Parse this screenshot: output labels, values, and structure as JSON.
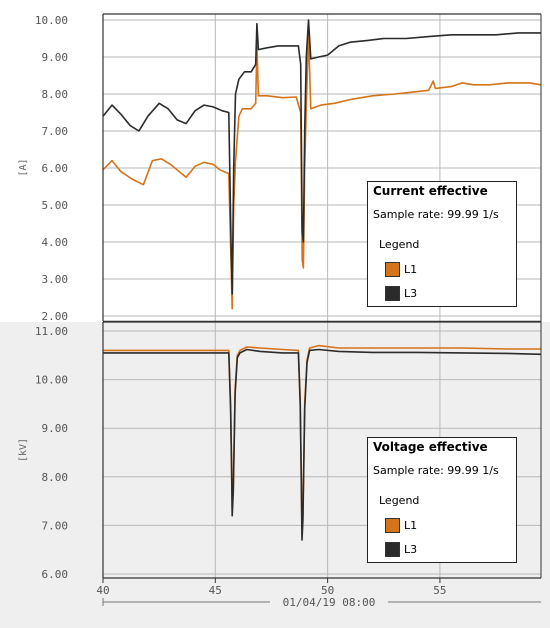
{
  "chart_data": [
    {
      "type": "line",
      "title": "Current effective",
      "ylabel": "[A]",
      "ylim": [
        2.0,
        10.0
      ],
      "yticks": [
        "10.00",
        "9.00",
        "8.00",
        "7.00",
        "6.00",
        "5.00",
        "4.00",
        "3.00",
        "2.00"
      ],
      "xlim": [
        40,
        59.5
      ],
      "grid": true,
      "legend": {
        "title": "Current effective",
        "sample_rate": "Sample rate: 99.99 1/s",
        "heading": "Legend",
        "placement": "right"
      },
      "series": [
        {
          "name": "L1",
          "color": "#d4731a",
          "points": [
            [
              40,
              5.95
            ],
            [
              40.4,
              6.2
            ],
            [
              40.8,
              5.9
            ],
            [
              41.3,
              5.7
            ],
            [
              41.8,
              5.55
            ],
            [
              42.2,
              6.2
            ],
            [
              42.6,
              6.25
            ],
            [
              43,
              6.1
            ],
            [
              43.4,
              5.9
            ],
            [
              43.7,
              5.75
            ],
            [
              44.1,
              6.05
            ],
            [
              44.5,
              6.15
            ],
            [
              44.9,
              6.1
            ],
            [
              45.2,
              5.95
            ],
            [
              45.6,
              5.85
            ],
            [
              45.7,
              3.5
            ],
            [
              45.75,
              2.2
            ],
            [
              45.82,
              5.0
            ],
            [
              45.9,
              6.2
            ],
            [
              46.05,
              7.4
            ],
            [
              46.2,
              7.6
            ],
            [
              46.6,
              7.6
            ],
            [
              46.8,
              7.75
            ],
            [
              46.85,
              9.35
            ],
            [
              46.92,
              7.95
            ],
            [
              47.3,
              7.95
            ],
            [
              48,
              7.9
            ],
            [
              48.6,
              7.92
            ],
            [
              48.8,
              7.5
            ],
            [
              48.87,
              3.5
            ],
            [
              48.92,
              3.3
            ],
            [
              48.98,
              6.0
            ],
            [
              49.05,
              7.7
            ],
            [
              49.15,
              9.6
            ],
            [
              49.25,
              7.6
            ],
            [
              49.7,
              7.7
            ],
            [
              50.3,
              7.75
            ],
            [
              51,
              7.85
            ],
            [
              52,
              7.95
            ],
            [
              53,
              8.0
            ],
            [
              53.8,
              8.05
            ],
            [
              54.5,
              8.1
            ],
            [
              54.7,
              8.35
            ],
            [
              54.8,
              8.15
            ],
            [
              55.5,
              8.2
            ],
            [
              56,
              8.3
            ],
            [
              56.5,
              8.25
            ],
            [
              57.2,
              8.25
            ],
            [
              58,
              8.3
            ],
            [
              59,
              8.3
            ],
            [
              59.5,
              8.25
            ]
          ]
        },
        {
          "name": "L3",
          "color": "#2b2b2b",
          "points": [
            [
              40,
              7.4
            ],
            [
              40.4,
              7.7
            ],
            [
              40.8,
              7.45
            ],
            [
              41.2,
              7.15
            ],
            [
              41.6,
              7.0
            ],
            [
              42,
              7.4
            ],
            [
              42.5,
              7.75
            ],
            [
              42.9,
              7.6
            ],
            [
              43.3,
              7.3
            ],
            [
              43.7,
              7.2
            ],
            [
              44.1,
              7.55
            ],
            [
              44.5,
              7.7
            ],
            [
              44.9,
              7.65
            ],
            [
              45.3,
              7.55
            ],
            [
              45.6,
              7.5
            ],
            [
              45.7,
              4.0
            ],
            [
              45.75,
              2.6
            ],
            [
              45.82,
              6.0
            ],
            [
              45.9,
              8.0
            ],
            [
              46.05,
              8.4
            ],
            [
              46.3,
              8.6
            ],
            [
              46.6,
              8.6
            ],
            [
              46.8,
              8.8
            ],
            [
              46.85,
              9.9
            ],
            [
              46.92,
              9.2
            ],
            [
              47.3,
              9.25
            ],
            [
              47.8,
              9.3
            ],
            [
              48.3,
              9.3
            ],
            [
              48.7,
              9.3
            ],
            [
              48.8,
              8.8
            ],
            [
              48.87,
              4.3
            ],
            [
              48.92,
              4.0
            ],
            [
              48.98,
              7.0
            ],
            [
              49.05,
              9.0
            ],
            [
              49.15,
              10.0
            ],
            [
              49.25,
              8.95
            ],
            [
              49.6,
              9.0
            ],
            [
              50,
              9.05
            ],
            [
              50.5,
              9.3
            ],
            [
              51,
              9.4
            ],
            [
              51.8,
              9.45
            ],
            [
              52.5,
              9.5
            ],
            [
              53.5,
              9.5
            ],
            [
              54.5,
              9.55
            ],
            [
              55.5,
              9.6
            ],
            [
              56.5,
              9.6
            ],
            [
              57.5,
              9.6
            ],
            [
              58.5,
              9.65
            ],
            [
              59.5,
              9.65
            ]
          ]
        }
      ]
    },
    {
      "type": "line",
      "title": "Voltage effective",
      "ylabel": "[kV]",
      "ylim": [
        6.0,
        11.0
      ],
      "yticks": [
        "11.00",
        "10.00",
        "9.00",
        "8.00",
        "7.00",
        "6.00"
      ],
      "xlim": [
        40,
        59.5
      ],
      "xticks": [
        "40",
        "45",
        "50",
        "55"
      ],
      "xlabel": "01/04/19 08:00",
      "grid": true,
      "legend": {
        "title": "Voltage effective",
        "sample_rate": "Sample rate: 99.99 1/s",
        "heading": "Legend",
        "placement": "right"
      },
      "series": [
        {
          "name": "L1",
          "color": "#d4731a",
          "points": [
            [
              40,
              10.6
            ],
            [
              42,
              10.6
            ],
            [
              44,
              10.6
            ],
            [
              45.6,
              10.6
            ],
            [
              45.68,
              9.5
            ],
            [
              45.72,
              8.4
            ],
            [
              45.75,
              7.3
            ],
            [
              45.8,
              7.8
            ],
            [
              45.88,
              9.8
            ],
            [
              45.98,
              10.5
            ],
            [
              46.1,
              10.6
            ],
            [
              46.4,
              10.67
            ],
            [
              47,
              10.65
            ],
            [
              48,
              10.62
            ],
            [
              48.7,
              10.6
            ],
            [
              48.78,
              9.6
            ],
            [
              48.83,
              8.0
            ],
            [
              48.86,
              6.8
            ],
            [
              48.9,
              7.2
            ],
            [
              48.98,
              9.5
            ],
            [
              49.08,
              10.4
            ],
            [
              49.2,
              10.65
            ],
            [
              49.6,
              10.7
            ],
            [
              50.5,
              10.65
            ],
            [
              52,
              10.65
            ],
            [
              54,
              10.65
            ],
            [
              56,
              10.65
            ],
            [
              58,
              10.63
            ],
            [
              59.5,
              10.63
            ]
          ]
        },
        {
          "name": "L3",
          "color": "#2b2b2b",
          "points": [
            [
              40,
              10.55
            ],
            [
              42,
              10.55
            ],
            [
              44,
              10.55
            ],
            [
              45.6,
              10.55
            ],
            [
              45.68,
              9.4
            ],
            [
              45.72,
              8.3
            ],
            [
              45.75,
              7.2
            ],
            [
              45.8,
              7.7
            ],
            [
              45.88,
              9.7
            ],
            [
              45.98,
              10.45
            ],
            [
              46.1,
              10.55
            ],
            [
              46.4,
              10.62
            ],
            [
              47,
              10.58
            ],
            [
              48,
              10.55
            ],
            [
              48.7,
              10.55
            ],
            [
              48.78,
              9.5
            ],
            [
              48.83,
              7.9
            ],
            [
              48.86,
              6.7
            ],
            [
              48.9,
              7.1
            ],
            [
              48.98,
              9.4
            ],
            [
              49.08,
              10.35
            ],
            [
              49.2,
              10.6
            ],
            [
              49.6,
              10.62
            ],
            [
              50.5,
              10.58
            ],
            [
              52,
              10.56
            ],
            [
              54,
              10.56
            ],
            [
              56,
              10.55
            ],
            [
              58,
              10.54
            ],
            [
              59.5,
              10.52
            ]
          ]
        }
      ]
    }
  ]
}
